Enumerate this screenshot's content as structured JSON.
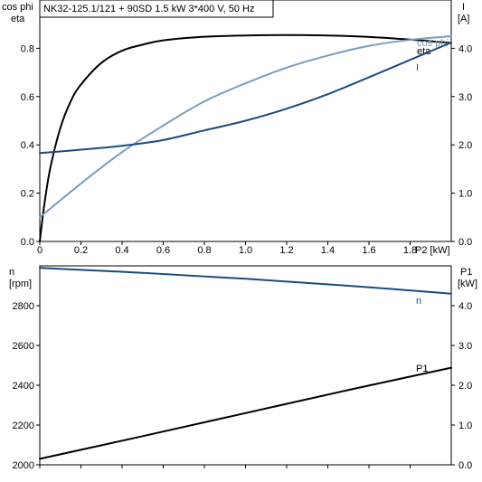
{
  "chart_data": [
    {
      "type": "line",
      "title": "NK32-125.1/121 + 90SD   1.5 kW   3*400 V, 50 Hz",
      "xlabel": "P2 [kW]",
      "xlim": [
        0,
        2
      ],
      "xticks": [
        "0",
        "0.2",
        "0.4",
        "0.6",
        "0.8",
        "1.0",
        "1.2",
        "1.4",
        "1.6",
        "1.8"
      ],
      "left_axis": {
        "label_lines": [
          "cos phi",
          "eta"
        ],
        "ylim": [
          0,
          1
        ],
        "ticks": [
          "0.0",
          "0.2",
          "0.4",
          "0.6",
          "0.8"
        ]
      },
      "right_axis": {
        "label_lines": [
          "I",
          "[A]"
        ],
        "ylim": [
          0,
          5
        ],
        "ticks": [
          "0.0",
          "1.0",
          "2.0",
          "3.0",
          "4.0"
        ]
      },
      "series": [
        {
          "name": "eta",
          "axis": "left",
          "color": "#000000",
          "x": [
            0,
            0.02,
            0.05,
            0.1,
            0.15,
            0.2,
            0.3,
            0.4,
            0.5,
            0.6,
            0.8,
            1.0,
            1.2,
            1.4,
            1.6,
            1.8,
            2.0
          ],
          "y": [
            0,
            0.14,
            0.3,
            0.47,
            0.58,
            0.65,
            0.74,
            0.79,
            0.815,
            0.833,
            0.848,
            0.853,
            0.855,
            0.853,
            0.847,
            0.836,
            0.822
          ]
        },
        {
          "name": "cos phi",
          "axis": "left",
          "color": "#7a9cbd",
          "x": [
            0,
            0.2,
            0.4,
            0.6,
            0.8,
            1.0,
            1.2,
            1.4,
            1.6,
            1.8,
            2.0
          ],
          "y": [
            0.1,
            0.24,
            0.37,
            0.48,
            0.58,
            0.655,
            0.72,
            0.77,
            0.81,
            0.835,
            0.85
          ]
        },
        {
          "name": "I",
          "axis": "right",
          "color": "#1a4a80",
          "x": [
            0,
            0.2,
            0.4,
            0.6,
            0.8,
            1.0,
            1.2,
            1.4,
            1.6,
            1.8,
            2.0
          ],
          "y": [
            1.83,
            1.9,
            1.98,
            2.1,
            2.3,
            2.5,
            2.75,
            3.05,
            3.4,
            3.76,
            4.12
          ]
        }
      ]
    },
    {
      "type": "line",
      "xlim": [
        0,
        2
      ],
      "left_axis": {
        "label_lines": [
          "n",
          "[rpm]"
        ],
        "ylim": [
          2000,
          3000
        ],
        "ticks": [
          "2000",
          "2200",
          "2400",
          "2600",
          "2800"
        ]
      },
      "right_axis": {
        "label_lines": [
          "P1",
          "[kW]"
        ],
        "ylim": [
          0,
          5
        ],
        "ticks": [
          "0.0",
          "1.0",
          "2.0",
          "3.0",
          "4.0"
        ]
      },
      "series": [
        {
          "name": "n",
          "axis": "left",
          "color": "#1a4a80",
          "x": [
            0,
            0.5,
            1.0,
            1.5,
            2.0
          ],
          "y": [
            2990,
            2965,
            2935,
            2900,
            2860
          ]
        },
        {
          "name": "P1",
          "axis": "right",
          "color": "#000000",
          "x": [
            0,
            0.5,
            1.0,
            1.5,
            2.0
          ],
          "y": [
            0.15,
            0.72,
            1.3,
            1.88,
            2.44
          ]
        }
      ]
    }
  ]
}
